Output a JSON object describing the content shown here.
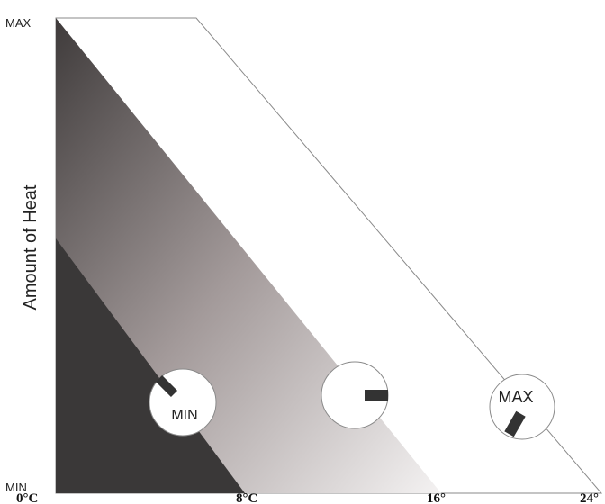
{
  "y_axis": {
    "max_label": "MAX",
    "min_label": "MIN",
    "title": "Amount of Heat"
  },
  "x_axis": {
    "ticks": [
      "0°C",
      "8°C",
      "16°",
      "24°"
    ]
  },
  "dials": [
    {
      "label": "MIN"
    },
    {
      "label": ""
    },
    {
      "label": "MAX"
    }
  ],
  "colors": {
    "dark_band": "#3a3838",
    "gradient_top": "#3f3b3b",
    "gradient_mid": "#a39a9a",
    "gradient_bottom": "#f4f2f2",
    "outline": "#8a8a8a",
    "knob": "#333333"
  }
}
